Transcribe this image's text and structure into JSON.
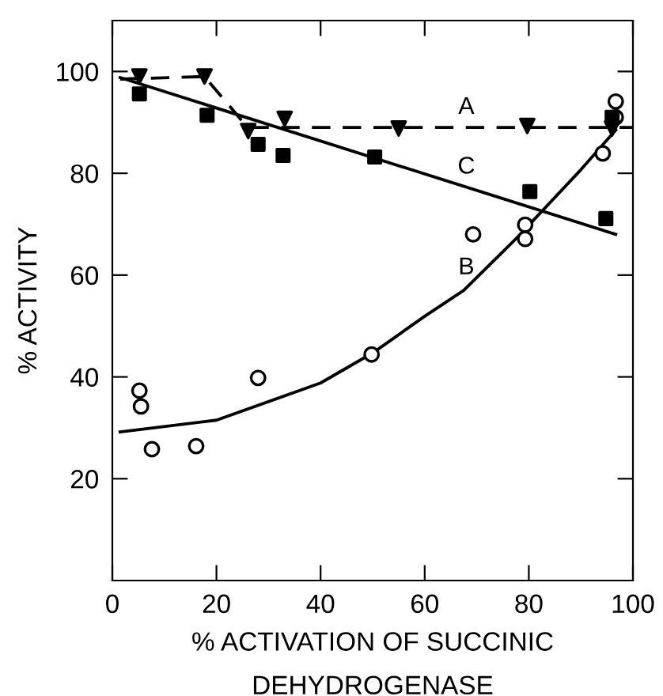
{
  "chart_data": {
    "type": "scatter",
    "xlabel": "% ACTIVATION OF SUCCINIC\nDEHYDROGENASE",
    "ylabel": "% ACTIVITY",
    "xlim": [
      0,
      100
    ],
    "ylim": [
      0,
      110
    ],
    "xticks": [
      0,
      20,
      40,
      60,
      80,
      100
    ],
    "yticks": [
      20,
      40,
      60,
      80,
      100
    ],
    "grid": false,
    "legend": false,
    "series": [
      {
        "marker": "triangle",
        "color": "#000000",
        "x": [
          5.2,
          17.7,
          26.1,
          33.1,
          55,
          79.7,
          96
        ],
        "values": [
          99,
          99,
          88.3,
          90.7,
          88.8,
          89.3,
          88.8
        ]
      },
      {
        "type": "line",
        "name": "A",
        "line_style": "dashed",
        "marker": "none",
        "color": "#000000",
        "x": [
          1.5,
          17.7,
          26,
          100
        ],
        "values": [
          98.5,
          99,
          89,
          89
        ]
      },
      {
        "marker": "square",
        "color": "#000000",
        "x": [
          5.2,
          18.2,
          28,
          32.8,
          50.4,
          80.2,
          94.8,
          96
        ],
        "values": [
          95.6,
          91.4,
          85.7,
          83.5,
          83.2,
          76.4,
          71.1,
          91
        ]
      },
      {
        "type": "line",
        "name": "C",
        "line_style": "solid",
        "marker": "none",
        "color": "#000000",
        "x": [
          1.5,
          96.7
        ],
        "values": [
          98.8,
          68
        ]
      },
      {
        "marker": "circle",
        "color": "#000000",
        "x": [
          5.2,
          5.5,
          7.6,
          16.1,
          28,
          49.8,
          69.3,
          79.3,
          79.3,
          94.2,
          96.7,
          96.7
        ],
        "values": [
          37.3,
          34.2,
          25.8,
          26.4,
          39.8,
          44.4,
          68,
          69.9,
          67.1,
          83.9,
          94.1,
          91
        ]
      },
      {
        "type": "line",
        "name": "B",
        "line_style": "solid",
        "marker": "none",
        "color": "#000000",
        "x": [
          1.5,
          20,
          40,
          50,
          60,
          67.5,
          77.8,
          90,
          96.7
        ],
        "values": [
          29.2,
          31.5,
          38.8,
          44.7,
          51.9,
          57,
          67.4,
          80.7,
          88.5
        ]
      }
    ]
  }
}
